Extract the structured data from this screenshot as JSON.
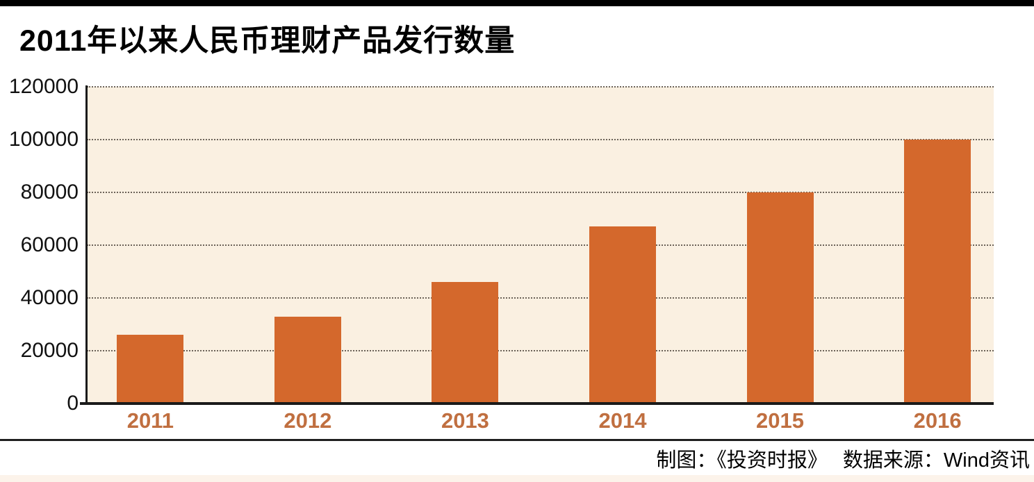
{
  "title": "2011年以来人民币理财产品发行数量",
  "footer": {
    "credit": "制图：《投资时报》",
    "source": "数据来源：Wind资讯"
  },
  "colors": {
    "top_bar": "#000000",
    "plot_background": "#FAF0E1",
    "bar": "#D4682C",
    "x_label": "#C06F40",
    "y_label": "#111111",
    "gridline": "#6b6258",
    "axis": "#1a1a1a",
    "bottom_strip": "#FCF3EA"
  },
  "chart_data": {
    "type": "bar",
    "title": "2011年以来人民币理财产品发行数量",
    "categories": [
      "2011",
      "2012",
      "2013",
      "2014",
      "2015",
      "2016"
    ],
    "values": [
      26000,
      33000,
      46000,
      67000,
      80000,
      100000
    ],
    "xlabel": "",
    "ylabel": "",
    "ylim": [
      0,
      120000
    ],
    "yticks": [
      0,
      20000,
      40000,
      60000,
      80000,
      100000,
      120000
    ],
    "grid": "horizontal-dotted",
    "legend_position": "none",
    "bar_color": "#D4682C",
    "source_note": "制图：《投资时报》 数据来源：Wind资讯"
  }
}
